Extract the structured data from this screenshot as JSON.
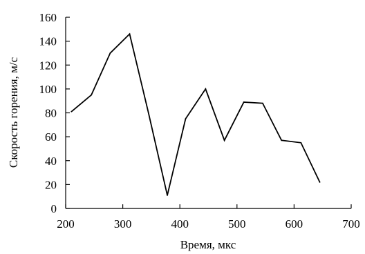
{
  "chart_data": {
    "type": "line",
    "title": "",
    "xlabel": "Время, мкс",
    "ylabel": "Скорость горения, м/с",
    "xlim": [
      200,
      700
    ],
    "ylim": [
      0,
      160
    ],
    "xticks": [
      200,
      300,
      400,
      500,
      600,
      700
    ],
    "yticks": [
      0,
      20,
      40,
      60,
      80,
      100,
      120,
      140,
      160
    ],
    "grid": false,
    "colors": {
      "line": "#000000",
      "axis": "#000000"
    },
    "series": [
      {
        "x": [
          210,
          245,
          278,
          312,
          345,
          378,
          410,
          445,
          478,
          512,
          545,
          578,
          612,
          645
        ],
        "y": [
          81,
          95,
          130,
          146,
          80,
          11,
          75,
          100,
          57,
          89,
          88,
          57,
          55,
          22
        ]
      }
    ]
  }
}
